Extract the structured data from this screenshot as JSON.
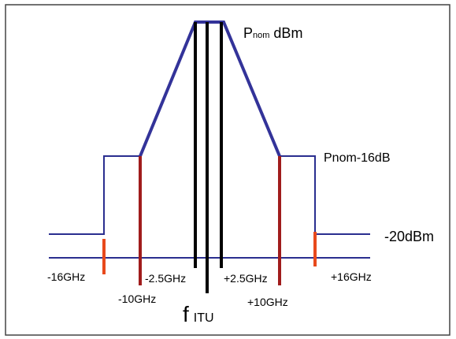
{
  "labels": {
    "p_nom_main": "P",
    "p_nom_sub": "nom",
    "p_nom_unit": "dBm",
    "p_nom_minus": "Pnom-16dB",
    "minus20": "-20dBm",
    "f_main": "f",
    "f_sub": "ITU",
    "m16": "-16GHz",
    "m10": "-10GHz",
    "m25": "-2.5GHz",
    "p25": "+2.5GHz",
    "p10": "+10GHz",
    "p16": "+16GHz"
  },
  "colors": {
    "mask_outer": "#2a2e8f",
    "mask_upper": "#333399",
    "marker_dark_red": "#a01c1c",
    "marker_orange": "#e8491c",
    "center_bars": "#000000",
    "frame": "#444444"
  }
}
